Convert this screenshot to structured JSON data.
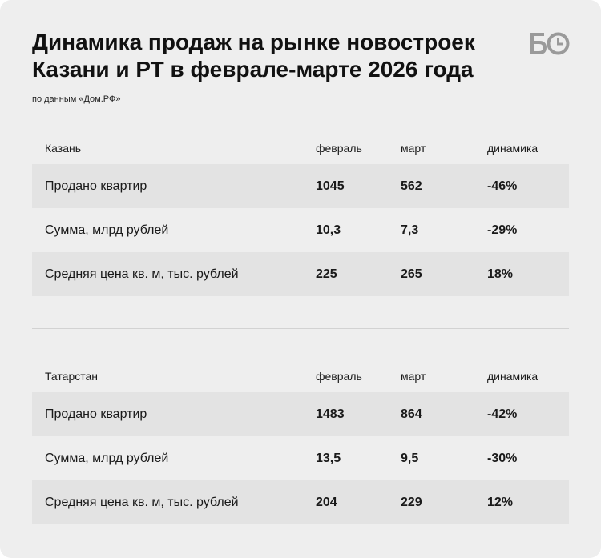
{
  "title_line1": "Динамика продаж на рынке новостроек",
  "title_line2": "Казани и РТ в феврале-марте 2026 года",
  "logo_text": "БО",
  "source": "по данным «Дом.РФ»",
  "tables": [
    {
      "header": {
        "label": "Казань",
        "feb": "февраль",
        "mar": "март",
        "dyn": "динамика"
      },
      "rows": [
        {
          "label": "Продано квартир",
          "feb": "1045",
          "mar": "562",
          "dyn": "-46%"
        },
        {
          "label": "Сумма, млрд рублей",
          "feb": "10,3",
          "mar": "7,3",
          "dyn": "-29%"
        },
        {
          "label": "Средняя цена кв. м, тыс. рублей",
          "feb": "225",
          "mar": "265",
          "dyn": "18%"
        }
      ]
    },
    {
      "header": {
        "label": "Татарстан",
        "feb": "февраль",
        "mar": "март",
        "dyn": "динамика"
      },
      "rows": [
        {
          "label": "Продано квартир",
          "feb": "1483",
          "mar": "864",
          "dyn": "-42%"
        },
        {
          "label": "Сумма, млрд рублей",
          "feb": "13,5",
          "mar": "9,5",
          "dyn": "-30%"
        },
        {
          "label": "Средняя цена кв. м, тыс. рублей",
          "feb": "204",
          "mar": "229",
          "dyn": "12%"
        }
      ]
    }
  ],
  "colors": {
    "background": "#eeeeee",
    "row_shade": "#e3e3e3",
    "text": "#1a1a1a",
    "logo": "#9a9a9a"
  }
}
